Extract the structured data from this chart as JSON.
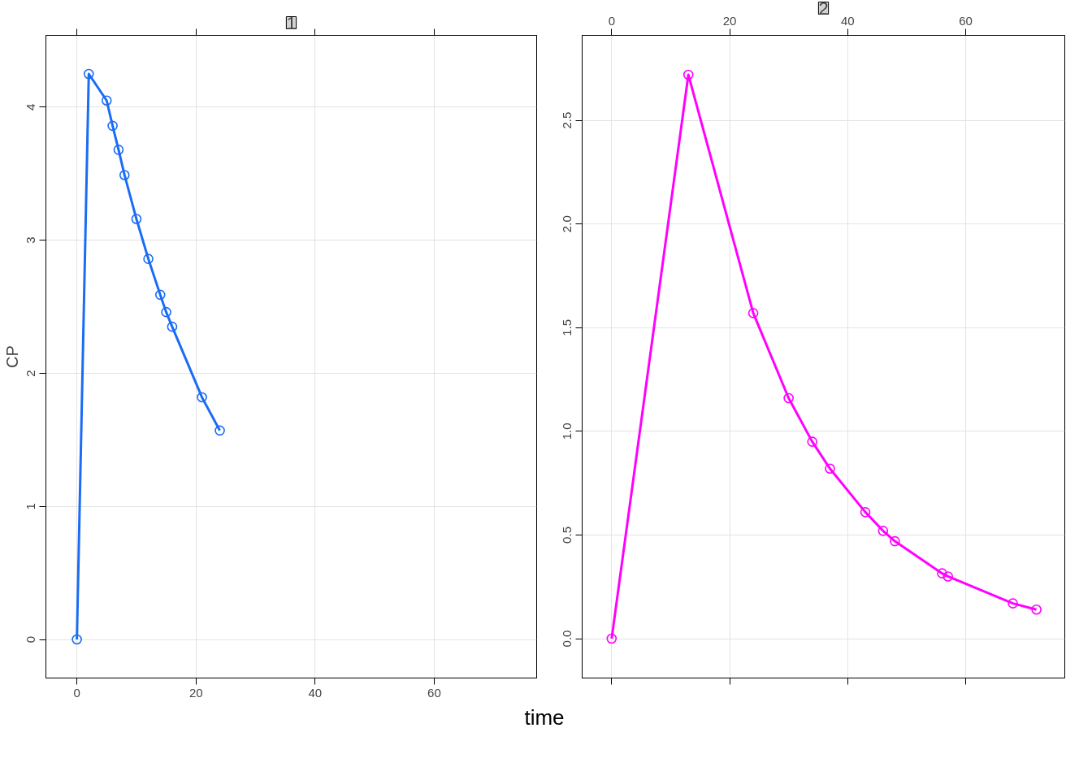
{
  "chart_data": [
    {
      "type": "line",
      "title": "1",
      "xlabel": "time",
      "ylabel": "CP",
      "marker": "circle",
      "line_style": "solid",
      "grid": true,
      "xlim": [
        -5.2,
        77.2
      ],
      "ylim": [
        -0.29,
        4.54
      ],
      "xticks": [
        0,
        20,
        40,
        60
      ],
      "yticks": [
        0,
        1,
        2,
        3,
        4
      ],
      "series": [
        {
          "color": "#1a6cf5",
          "x": [
            0,
            2,
            5,
            6,
            7,
            8,
            10,
            12,
            14,
            15,
            16,
            21,
            24
          ],
          "values": [
            0,
            4.25,
            4.05,
            3.86,
            3.68,
            3.49,
            3.16,
            2.86,
            2.59,
            2.46,
            2.35,
            1.82,
            1.57
          ]
        }
      ]
    },
    {
      "type": "line",
      "title": "2",
      "marker": "circle",
      "line_style": "solid",
      "grid": true,
      "ylim": [
        -0.19,
        2.91
      ],
      "yticks": [
        {
          "value": 0,
          "label": "0.0"
        },
        {
          "value": 0.5,
          "label": "0.5"
        },
        {
          "value": 1,
          "label": "1.0"
        },
        {
          "value": 1.5,
          "label": "1.5"
        },
        {
          "value": 2,
          "label": "2.0"
        },
        {
          "value": 2.5,
          "label": "2.5"
        }
      ],
      "xlim": [
        -5.0,
        76.8
      ],
      "xticks": [
        0,
        20,
        40,
        60
      ],
      "series": [
        {
          "color": "#ff00ff",
          "x": [
            0,
            13,
            24,
            30,
            34,
            37,
            43,
            46,
            48,
            56,
            57,
            68,
            72
          ],
          "values": [
            0,
            2.72,
            1.57,
            1.16,
            0.95,
            0.82,
            0.61,
            0.52,
            0.47,
            0.315,
            0.3,
            0.17,
            0.14
          ]
        }
      ]
    }
  ]
}
